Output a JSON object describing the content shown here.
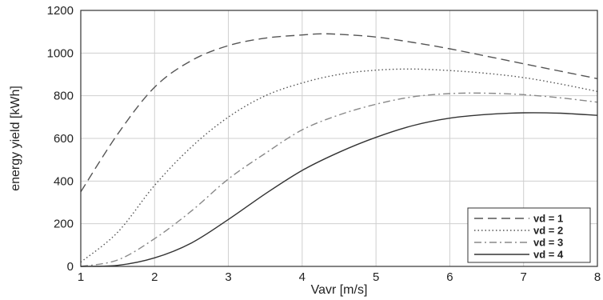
{
  "chart_data": {
    "type": "line",
    "title": "",
    "xlabel": "Vavr [m/s]",
    "ylabel": "energy yield [kWh]",
    "xlim": [
      1,
      8
    ],
    "ylim": [
      0,
      1200
    ],
    "xticks": [
      "1",
      "2",
      "3",
      "4",
      "5",
      "6",
      "7",
      "8"
    ],
    "yticks": [
      "0",
      "200",
      "400",
      "600",
      "800",
      "1000",
      "1200"
    ],
    "grid": true,
    "legend_position": "bottom-right",
    "series": [
      {
        "name": "vd = 1",
        "style": "dashed",
        "color": "#555555",
        "x": [
          1,
          1.5,
          2,
          2.5,
          3,
          3.5,
          4,
          4.25,
          4.5,
          5,
          5.5,
          6,
          6.5,
          7,
          7.5,
          8
        ],
        "y": [
          350,
          620,
          840,
          965,
          1035,
          1070,
          1085,
          1090,
          1088,
          1075,
          1050,
          1020,
          985,
          950,
          915,
          880
        ]
      },
      {
        "name": "vd = 2",
        "style": "dotted",
        "color": "#555555",
        "x": [
          1,
          1.5,
          2,
          2.5,
          3,
          3.5,
          4,
          4.5,
          5,
          5.5,
          6,
          6.5,
          7,
          7.5,
          8
        ],
        "y": [
          20,
          160,
          380,
          560,
          700,
          800,
          860,
          900,
          920,
          925,
          918,
          905,
          885,
          855,
          820
        ]
      },
      {
        "name": "vd = 3",
        "style": "dashdot",
        "color": "#888888",
        "x": [
          1,
          1.5,
          2,
          2.5,
          3,
          3.5,
          4,
          4.5,
          5,
          5.5,
          6,
          6.5,
          7,
          7.5,
          8
        ],
        "y": [
          0,
          30,
          130,
          260,
          410,
          530,
          640,
          710,
          760,
          795,
          810,
          812,
          805,
          790,
          770
        ]
      },
      {
        "name": "vd = 4",
        "style": "solid",
        "color": "#333333",
        "x": [
          1,
          1.5,
          2,
          2.5,
          3,
          3.5,
          4,
          4.5,
          5,
          5.5,
          6,
          6.5,
          7,
          7.5,
          8
        ],
        "y": [
          0,
          5,
          40,
          110,
          220,
          340,
          450,
          535,
          605,
          660,
          695,
          712,
          720,
          718,
          708
        ]
      }
    ]
  }
}
